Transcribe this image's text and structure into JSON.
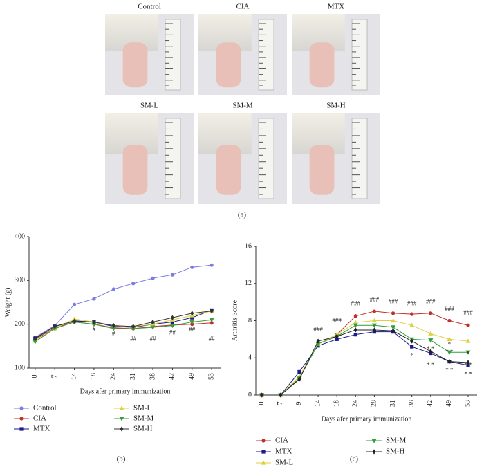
{
  "photos": [
    "Control",
    "CIA",
    "MTX",
    "SM-L",
    "SM-M",
    "SM-H"
  ],
  "panel_labels": [
    "(a)",
    "(b)",
    "(c)"
  ],
  "chart_data": [
    {
      "type": "line",
      "y_label": "Weight (g)",
      "x_label": "Days afer primary immunization",
      "categories": [
        "0",
        "7",
        "14",
        "18",
        "24",
        "31",
        "38",
        "42",
        "49",
        "53"
      ],
      "ylim": [
        100,
        400
      ],
      "yticks": [
        100,
        200,
        300,
        400
      ],
      "series": [
        {
          "name": "Control",
          "color": "#7b7be0",
          "values": [
            170,
            197,
            245,
            258,
            280,
            293,
            305,
            313,
            330,
            335
          ]
        },
        {
          "name": "CIA",
          "color": "#c0302b",
          "values": [
            165,
            192,
            205,
            200,
            192,
            190,
            195,
            198,
            200,
            203
          ]
        },
        {
          "name": "MTX",
          "color": "#1a1a8c",
          "values": [
            168,
            195,
            208,
            205,
            195,
            193,
            200,
            205,
            215,
            232
          ]
        },
        {
          "name": "SM-L",
          "color": "#e0d040",
          "values": [
            162,
            190,
            212,
            205,
            197,
            195,
            200,
            210,
            220,
            230
          ]
        },
        {
          "name": "SM-M",
          "color": "#3a9e3a",
          "values": [
            160,
            190,
            205,
            200,
            190,
            190,
            193,
            197,
            205,
            210
          ]
        },
        {
          "name": "SM-H",
          "color": "#333333",
          "values": [
            167,
            195,
            207,
            205,
            197,
            195,
            205,
            215,
            225,
            230
          ]
        }
      ],
      "annotations": [
        {
          "text": "#",
          "category": "18",
          "y": 188
        },
        {
          "text": "#",
          "category": "24",
          "y": 178
        },
        {
          "text": "##",
          "category": "31",
          "y": 166
        },
        {
          "text": "##",
          "category": "38",
          "y": 166
        },
        {
          "text": "##",
          "category": "42",
          "y": 180
        },
        {
          "text": "##",
          "category": "49",
          "y": 188
        },
        {
          "text": "##",
          "category": "53",
          "y": 166
        }
      ]
    },
    {
      "type": "line",
      "y_label": "Arthritis Score",
      "x_label": "Days afer primary immunization",
      "categories": [
        "0",
        "7",
        "9",
        "14",
        "18",
        "24",
        "28",
        "31",
        "38",
        "42",
        "49",
        "53"
      ],
      "ylim": [
        0,
        16
      ],
      "yticks": [
        0,
        4,
        8,
        12,
        16
      ],
      "series": [
        {
          "name": "CIA",
          "color": "#c0302b",
          "values": [
            0,
            0,
            1.8,
            5.5,
            6.5,
            8.5,
            9.0,
            8.8,
            8.7,
            8.8,
            8.0,
            7.5
          ]
        },
        {
          "name": "MTX",
          "color": "#1a1a8c",
          "values": [
            0,
            0,
            2.5,
            5.3,
            6.0,
            6.5,
            6.8,
            6.8,
            5.2,
            4.5,
            3.6,
            3.2
          ]
        },
        {
          "name": "SM-L",
          "color": "#e0d040",
          "values": [
            0,
            0,
            2.0,
            5.5,
            6.5,
            7.8,
            8.0,
            8.0,
            7.5,
            6.6,
            6.0,
            5.8
          ]
        },
        {
          "name": "SM-M",
          "color": "#2e9e3a",
          "values": [
            0,
            0,
            1.8,
            5.5,
            6.3,
            7.5,
            7.5,
            7.3,
            6.0,
            5.9,
            4.6,
            4.6
          ]
        },
        {
          "name": "SM-H",
          "color": "#222222",
          "values": [
            0,
            0,
            1.7,
            5.8,
            6.3,
            7.0,
            7.0,
            6.9,
            5.8,
            4.7,
            3.6,
            3.5
          ]
        }
      ],
      "annotations": [
        {
          "text": "###",
          "category": "14",
          "y": 7.0
        },
        {
          "text": "###",
          "category": "18",
          "y": 8.0
        },
        {
          "text": "###",
          "category": "24",
          "y": 9.8
        },
        {
          "text": "###",
          "category": "28",
          "y": 10.2
        },
        {
          "text": "###",
          "category": "31",
          "y": 10.0
        },
        {
          "text": "###",
          "category": "38",
          "y": 9.8
        },
        {
          "text": "###",
          "category": "42",
          "y": 10.0
        },
        {
          "text": "###",
          "category": "49",
          "y": 9.2
        },
        {
          "text": "###",
          "category": "53",
          "y": 8.8
        },
        {
          "text": "*",
          "category": "38",
          "y": 4.2
        },
        {
          "text": "* *",
          "category": "42",
          "y": 3.2
        },
        {
          "text": "* *",
          "category": "42",
          "y": 4.9
        },
        {
          "text": "*",
          "category": "49",
          "y": 5.4
        },
        {
          "text": "* *",
          "category": "49",
          "y": 2.6
        },
        {
          "text": "* *",
          "category": "49",
          "y": 4.6
        },
        {
          "text": "*",
          "category": "53",
          "y": 4.4
        },
        {
          "text": "* *",
          "category": "53",
          "y": 3.2
        },
        {
          "text": "* *",
          "category": "53",
          "y": 2.2
        }
      ]
    }
  ]
}
